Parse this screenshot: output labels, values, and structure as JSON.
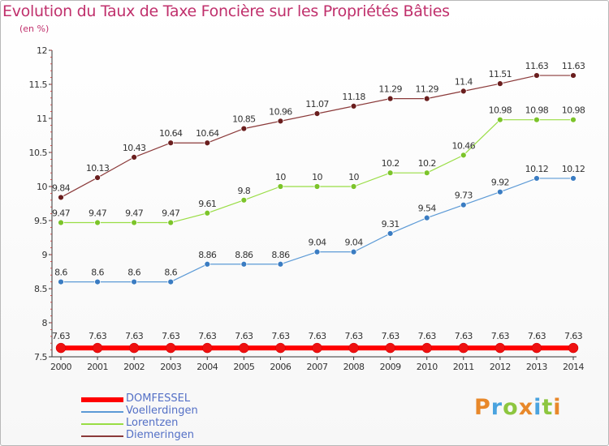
{
  "title": "Evolution du Taux de Taxe Foncière sur les Propriétés Bâties",
  "subtitle": "(en %)",
  "logo": {
    "letters": [
      {
        "ch": "P",
        "color": "#e8882a"
      },
      {
        "ch": "r",
        "color": "#4aa3df"
      },
      {
        "ch": "o",
        "color": "#8dc63f"
      },
      {
        "ch": "x",
        "color": "#e8882a"
      },
      {
        "ch": "i",
        "color": "#4aa3df"
      },
      {
        "ch": "t",
        "color": "#8dc63f"
      },
      {
        "ch": "i",
        "color": "#e8882a"
      }
    ]
  },
  "chart_data": {
    "type": "line",
    "x": [
      "2000",
      "2001",
      "2002",
      "2003",
      "2004",
      "2005",
      "2006",
      "2007",
      "2008",
      "2009",
      "2010",
      "2011",
      "2012",
      "2013",
      "2014"
    ],
    "ylim": [
      7.5,
      12
    ],
    "yticks": [
      "7.5",
      "8",
      "8.5",
      "9",
      "9.5",
      "10",
      "10.5",
      "11",
      "11.5",
      "12"
    ],
    "grid": false,
    "legend_position": "bottom-left",
    "series": [
      {
        "name": "DOMFESSEL",
        "color": "#ff0000",
        "point_color": "#ee1111",
        "width": 6,
        "radius": 6,
        "values": [
          7.63,
          7.63,
          7.63,
          7.63,
          7.63,
          7.63,
          7.63,
          7.63,
          7.63,
          7.63,
          7.63,
          7.63,
          7.63,
          7.63,
          7.63
        ],
        "labels": [
          "7.63",
          "7.63",
          "7.63",
          "7.63",
          "7.63",
          "7.63",
          "7.63",
          "7.63",
          "7.63",
          "7.63",
          "7.63",
          "7.63",
          "7.63",
          "7.63",
          "7.63"
        ]
      },
      {
        "name": "Voellerdingen",
        "color": "#5c9ad6",
        "point_color": "#3a7cc2",
        "width": 1.2,
        "radius": 3.5,
        "values": [
          8.6,
          8.6,
          8.6,
          8.6,
          8.86,
          8.86,
          8.86,
          9.04,
          9.04,
          9.31,
          9.54,
          9.73,
          9.92,
          10.12,
          10.12
        ],
        "labels": [
          "8.6",
          "8.6",
          "8.6",
          "8.6",
          "8.86",
          "8.86",
          "8.86",
          "9.04",
          "9.04",
          "9.31",
          "9.54",
          "9.73",
          "9.92",
          "10.12",
          "10.12"
        ]
      },
      {
        "name": "Lorentzen",
        "color": "#99dd44",
        "point_color": "#7cc42a",
        "width": 1.2,
        "radius": 3.5,
        "values": [
          9.47,
          9.47,
          9.47,
          9.47,
          9.61,
          9.8,
          10,
          10,
          10,
          10.2,
          10.2,
          10.46,
          10.98,
          10.98,
          10.98
        ],
        "labels": [
          "9.47",
          "9.47",
          "9.47",
          "9.47",
          "9.61",
          "9.8",
          "10",
          "10",
          "10",
          "10.2",
          "10.2",
          "10.46",
          "10.98",
          "10.98",
          "10.98"
        ]
      },
      {
        "name": "Diemeringen",
        "color": "#8b3a3a",
        "point_color": "#6a1e1e",
        "width": 1.2,
        "radius": 3.5,
        "values": [
          9.84,
          10.13,
          10.43,
          10.64,
          10.64,
          10.85,
          10.96,
          11.07,
          11.18,
          11.29,
          11.29,
          11.4,
          11.51,
          11.63,
          11.63
        ],
        "labels": [
          "9.84",
          "10.13",
          "10.43",
          "10.64",
          "10.64",
          "10.85",
          "10.96",
          "11.07",
          "11.18",
          "11.29",
          "11.29",
          "11.4",
          "11.51",
          "11.63",
          "11.63"
        ]
      }
    ]
  }
}
